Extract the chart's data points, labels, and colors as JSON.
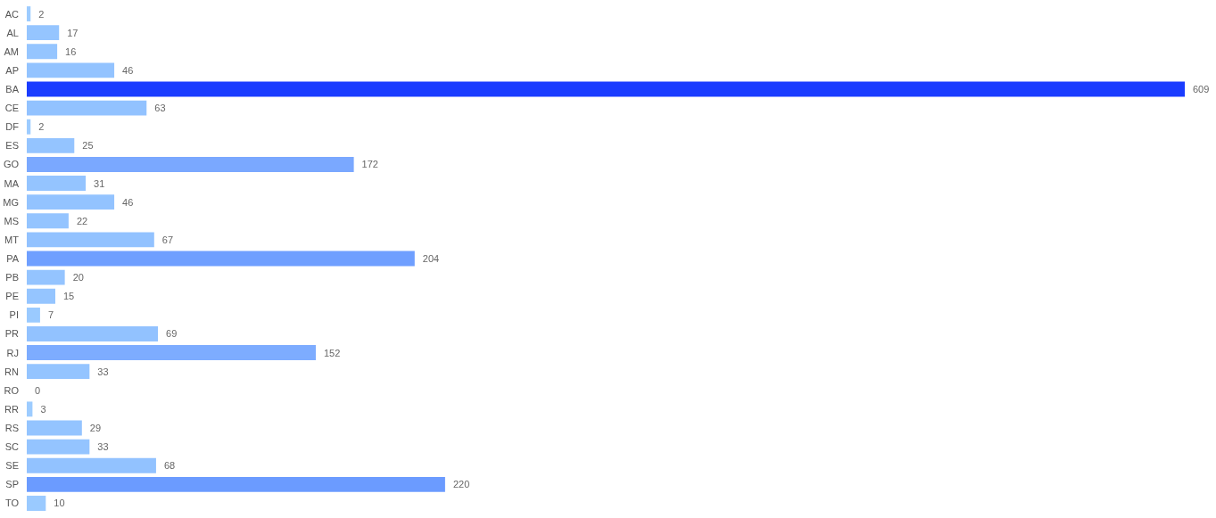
{
  "chart_data": {
    "type": "bar",
    "orientation": "horizontal",
    "categories": [
      "AC",
      "AL",
      "AM",
      "AP",
      "BA",
      "CE",
      "DF",
      "ES",
      "GO",
      "MA",
      "MG",
      "MS",
      "MT",
      "PA",
      "PB",
      "PE",
      "PI",
      "PR",
      "RJ",
      "RN",
      "RO",
      "RR",
      "RS",
      "SC",
      "SE",
      "SP",
      "TO"
    ],
    "values": [
      2,
      17,
      16,
      46,
      609,
      63,
      2,
      25,
      172,
      31,
      46,
      22,
      67,
      204,
      20,
      15,
      7,
      69,
      152,
      33,
      0,
      3,
      29,
      33,
      68,
      220,
      10
    ],
    "colors": [
      "#9dccff",
      "#95c5ff",
      "#95c5ff",
      "#93c3ff",
      "#1a3cff",
      "#92c2ff",
      "#9dccff",
      "#94c4ff",
      "#7aa8ff",
      "#94c4ff",
      "#93c3ff",
      "#94c4ff",
      "#92c2ff",
      "#6f9fff",
      "#94c4ff",
      "#95c5ff",
      "#9acaff",
      "#92c2ff",
      "#7dacff",
      "#94c4ff",
      "#9dccff",
      "#9dccff",
      "#94c4ff",
      "#94c4ff",
      "#92c2ff",
      "#6b9bff",
      "#9acaff"
    ],
    "xlim": [
      0,
      609
    ],
    "data_labels": true,
    "grid": false,
    "tick_labels": "y"
  }
}
